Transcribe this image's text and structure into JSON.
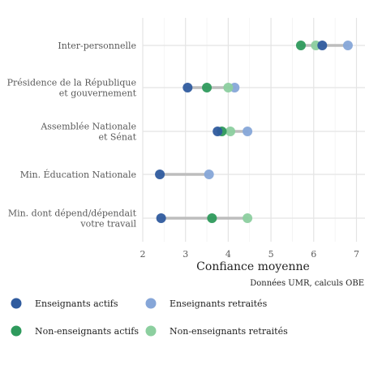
{
  "chart_data": {
    "type": "dumbbell",
    "xlabel": "Confiance moyenne",
    "caption": "Données UMR, calculs OBE",
    "xlim": [
      2,
      7.2
    ],
    "xticks": [
      2,
      3,
      4,
      5,
      6,
      7
    ],
    "grid": true,
    "legend_position": "bottom",
    "categories": [
      [
        "Inter-personnelle"
      ],
      [
        "Présidence de la République",
        "et gouvernement"
      ],
      [
        "Assemblée Nationale",
        "et Sénat"
      ],
      [
        "Min. Éducation Nationale"
      ],
      [
        "Min. dont dépend/dépendait",
        "votre travail"
      ]
    ],
    "series": [
      {
        "name": "Enseignants actifs",
        "color": "#2f5b9e",
        "values": [
          6.2,
          3.05,
          3.75,
          2.4,
          2.43
        ]
      },
      {
        "name": "Enseignants retraités",
        "color": "#86a6d8",
        "values": [
          6.8,
          4.15,
          4.45,
          3.55,
          null
        ]
      },
      {
        "name": "Non-enseignants actifs",
        "color": "#2e9a5c",
        "values": [
          5.7,
          3.5,
          3.85,
          null,
          3.62
        ]
      },
      {
        "name": "Non-enseignants retraités",
        "color": "#8ccf9f",
        "values": [
          6.05,
          4.0,
          4.05,
          null,
          4.45
        ]
      }
    ]
  }
}
